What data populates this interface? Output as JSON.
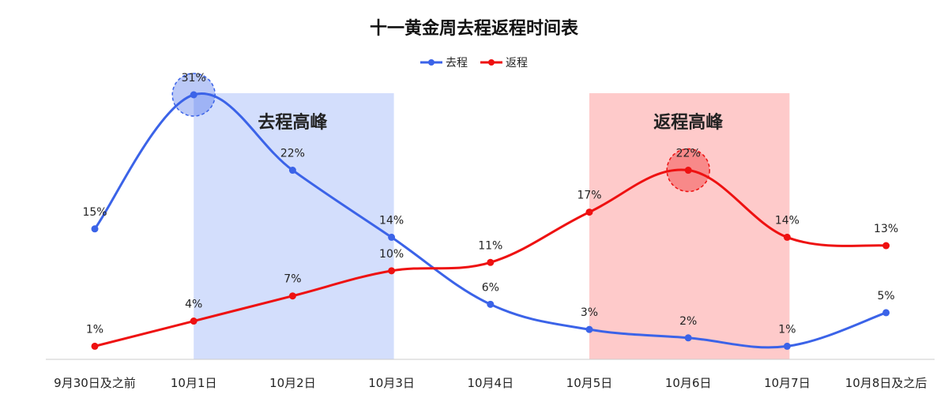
{
  "chart_data": {
    "type": "line",
    "title": "十一黄金周去程返程时间表",
    "categories": [
      "9月30日及之前",
      "10月1日",
      "10月2日",
      "10月3日",
      "10月4日",
      "10月5日",
      "10月6日",
      "10月7日",
      "10月8日及之后"
    ],
    "series": [
      {
        "name": "去程",
        "color": "#3b63e8",
        "values": [
          15,
          31,
          22,
          14,
          6,
          3,
          2,
          1,
          5
        ],
        "labels": [
          "15%",
          "31%",
          "22%",
          "14%",
          "6%",
          "3%",
          "2%",
          "1%",
          "5%"
        ]
      },
      {
        "name": "返程",
        "color": "#ee1111",
        "values": [
          1,
          4,
          7,
          10,
          11,
          17,
          22,
          14,
          13
        ],
        "labels": [
          "1%",
          "4%",
          "7%",
          "10%",
          "11%",
          "17%",
          "22%",
          "14%",
          "13%"
        ]
      }
    ],
    "ylim": [
      0,
      31
    ],
    "legend_position": "top-center",
    "highlight_bands": [
      {
        "label": "去程高峰",
        "from": "10月1日",
        "to": "10月3日",
        "color": "#d3defc"
      },
      {
        "label": "返程高峰",
        "from": "10月5日",
        "to": "10月7日",
        "color": "#fecaca"
      }
    ],
    "highlight_points": [
      {
        "series": "去程",
        "category": "10月1日"
      },
      {
        "series": "返程",
        "category": "10月6日"
      }
    ],
    "grid": false
  }
}
